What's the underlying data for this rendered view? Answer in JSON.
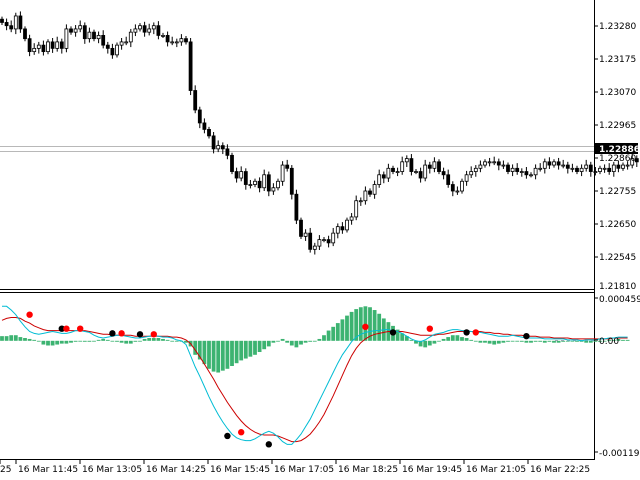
{
  "colors": {
    "background": "#ffffff",
    "frame": "#000000",
    "grid_line": "#b8b8b8",
    "bull_body": "#ffffff",
    "bear_body": "#000000",
    "candle_wick": "#000000",
    "price_badge_bg": "#000000",
    "price_badge_text": "#ffffff",
    "histogram": "#3cb371",
    "fast_line": "#00bcd4",
    "slow_line": "#cc0000",
    "dot_black": "#000000",
    "dot_red": "#ff0000",
    "zero_line": "#9aa6b2"
  },
  "main_panel": {
    "price_axis_labels": [
      "1.23280",
      "1.23175",
      "1.23070",
      "1.22965",
      "1.22886",
      "1.22860",
      "1.22755",
      "1.22650",
      "1.22545",
      "1.21810"
    ],
    "current_price": "1.22886"
  },
  "indicator_panel": {
    "axis_labels": [
      "0.000459",
      "0.00",
      "-0.001192"
    ]
  },
  "time_axis": {
    "labels": [
      "25",
      "16 Mar 11:45",
      "16 Mar 13:05",
      "16 Mar 14:25",
      "16 Mar 15:45",
      "16 Mar 17:05",
      "16 Mar 18:25",
      "16 Mar 19:45",
      "16 Mar 21:05",
      "16 Mar 22:25"
    ]
  },
  "chart_data": [
    {
      "type": "candlestick",
      "x_unit": "bar index (5-minute bars, 16 Mar)",
      "y_axis_ticks": [
        1.2328,
        1.23175,
        1.2307,
        1.22965,
        1.2286,
        1.22755,
        1.2265,
        1.22545
      ],
      "ylim": [
        1.225,
        1.2337
      ],
      "current_price": 1.22886,
      "close": [
        1.2331,
        1.233,
        1.2329,
        1.2333,
        1.2329,
        1.2326,
        1.2322,
        1.2323,
        1.2324,
        1.2322,
        1.2325,
        1.2323,
        1.2325,
        1.2323,
        1.2329,
        1.2328,
        1.2329,
        1.233,
        1.2326,
        1.2328,
        1.2326,
        1.2327,
        1.2324,
        1.2323,
        1.2321,
        1.2324,
        1.2325,
        1.2325,
        1.2328,
        1.2329,
        1.233,
        1.2328,
        1.2329,
        1.233,
        1.2327,
        1.2327,
        1.2325,
        1.2325,
        1.2325,
        1.2326,
        1.2325,
        1.231,
        1.2304,
        1.23,
        1.2298,
        1.2296,
        1.2292,
        1.2293,
        1.2292,
        1.229,
        1.2285,
        1.2283,
        1.2285,
        1.2281,
        1.2281,
        1.2282,
        1.228,
        1.2284,
        1.2279,
        1.228,
        1.2282,
        1.2287,
        1.2286,
        1.2278,
        1.227,
        1.2265,
        1.2266,
        1.2261,
        1.2262,
        1.2264,
        1.2264,
        1.2263,
        1.2266,
        1.2268,
        1.2267,
        1.227,
        1.2271,
        1.2276,
        1.2276,
        1.2279,
        1.2278,
        1.2281,
        1.2284,
        1.2283,
        1.2286,
        1.2285,
        1.2285,
        1.2288,
        1.2289,
        1.2285,
        1.2285,
        1.2283,
        1.2287,
        1.2286,
        1.2288,
        1.2285,
        1.2284,
        1.2281,
        1.2279,
        1.2279,
        1.2282,
        1.2284,
        1.2285,
        1.2286,
        1.2287,
        1.2288,
        1.2288,
        1.2288,
        1.2287,
        1.2287,
        1.2285,
        1.2286,
        1.2285,
        1.2285,
        1.2284,
        1.2284,
        1.2286,
        1.2286,
        1.2288,
        1.2287,
        1.2288,
        1.2287,
        1.2287,
        1.2286,
        1.2286,
        1.2285,
        1.2286,
        1.2287,
        1.2285,
        1.2285,
        1.2286,
        1.2286,
        1.2285,
        1.2287,
        1.2286,
        1.2287,
        1.2287,
        1.2289,
        1.2288
      ]
    },
    {
      "type": "oscillator",
      "y_axis_ticks": [
        0.000459,
        0.0,
        -0.001192
      ],
      "ylim": [
        -0.001192,
        0.000459
      ],
      "histogram": [
        5e-05,
        5e-05,
        6e-05,
        6e-05,
        4e-05,
        3e-05,
        2e-05,
        1e-05,
        0.0,
        -4e-05,
        -5e-05,
        -5e-05,
        -4e-05,
        -3e-05,
        -3e-05,
        -2e-05,
        -1e-05,
        0.0,
        -1e-05,
        -1e-05,
        0.0,
        1e-05,
        2e-05,
        1e-05,
        0.0,
        -1e-05,
        -2e-05,
        -3e-05,
        -3e-05,
        -1e-05,
        0.0,
        2e-05,
        3e-05,
        3e-05,
        3e-05,
        2e-05,
        1e-05,
        0.0,
        0.0,
        0.0,
        -2e-05,
        -6e-05,
        -0.00015,
        -0.0002,
        -0.00025,
        -0.0003,
        -0.00033,
        -0.00034,
        -0.00032,
        -0.0003,
        -0.00027,
        -0.00024,
        -0.00021,
        -0.00019,
        -0.00017,
        -0.00015,
        -0.00012,
        -9e-05,
        -6e-05,
        -2e-05,
        0.0,
        2e-05,
        -2e-05,
        -5e-05,
        -7e-05,
        -4e-05,
        -2e-05,
        -1e-05,
        0.0,
        2e-05,
        6e-05,
        0.00011,
        0.00015,
        0.00019,
        0.00023,
        0.00027,
        0.00031,
        0.00034,
        0.00036,
        0.00037,
        0.00036,
        0.00033,
        0.00029,
        0.00024,
        0.0002,
        0.00016,
        0.00012,
        8e-05,
        5e-05,
        1e-05,
        -3e-05,
        -6e-05,
        -7e-05,
        -5e-05,
        -3e-05,
        0.0,
        2e-05,
        4e-05,
        6e-05,
        6e-05,
        4e-05,
        3e-05,
        1e-05,
        0.0,
        -2e-05,
        -2e-05,
        -3e-05,
        -4e-05,
        -3e-05,
        -2e-05,
        -1e-05,
        0.0,
        0.0,
        -1e-05,
        -2e-05,
        -2e-05,
        -1e-05,
        -1e-05,
        -2e-05,
        -1e-05,
        -2e-05,
        -2e-05,
        -1e-05,
        0.0,
        0.0,
        -1e-05,
        -1e-05,
        -2e-05,
        -2e-05,
        -1e-05,
        -1e-05,
        0.0,
        1e-05,
        1e-05,
        2e-05,
        1e-05,
        1e-05
      ],
      "fast_line": [
        0.00037,
        0.00037,
        0.00033,
        0.00028,
        0.00021,
        0.00015,
        0.0001,
        8e-05,
        7e-05,
        8e-05,
        9e-05,
        0.0001,
        9e-05,
        8e-05,
        8e-05,
        9e-05,
        0.00011,
        0.00011,
        0.0001,
        9e-05,
        6e-05,
        4e-05,
        3e-05,
        4e-05,
        5e-05,
        6e-05,
        6e-05,
        5e-05,
        4e-05,
        3e-05,
        3e-05,
        4e-05,
        5e-05,
        6e-05,
        5e-05,
        4e-05,
        4e-05,
        3e-05,
        1e-05,
        0.0,
        -4e-05,
        -0.00016,
        -0.00028,
        -0.00038,
        -0.00049,
        -0.0006,
        -0.0007,
        -0.00079,
        -0.00087,
        -0.00094,
        -0.001,
        -0.00104,
        -0.00106,
        -0.00107,
        -0.00107,
        -0.00105,
        -0.00102,
        -0.00099,
        -0.00097,
        -0.00099,
        -0.00103,
        -0.00108,
        -0.00111,
        -0.00111,
        -0.00106,
        -0.001,
        -0.00092,
        -0.00084,
        -0.00074,
        -0.00064,
        -0.00054,
        -0.00044,
        -0.00034,
        -0.00024,
        -0.00015,
        -8e-05,
        -1e-05,
        4e-05,
        7e-05,
        9e-05,
        0.0001,
        0.00011,
        0.00011,
        0.00012,
        0.00012,
        0.00011,
        0.0001,
        8e-05,
        5e-05,
        2e-05,
        0.0,
        -1e-05,
        1e-05,
        4e-05,
        7e-05,
        8e-05,
        9e-05,
        0.00011,
        0.00012,
        0.00012,
        0.00011,
        0.00011,
        0.0001,
        9e-05,
        9e-05,
        8e-05,
        7e-05,
        6e-05,
        5e-05,
        5e-05,
        5e-05,
        6e-05,
        5e-05,
        4e-05,
        3e-05,
        3e-05,
        3e-05,
        3e-05,
        2e-05,
        2e-05,
        2e-05,
        2e-05,
        2e-05,
        1e-05,
        1e-05,
        1e-05,
        0.0,
        1e-05,
        1e-05,
        1e-05,
        2e-05,
        2e-05,
        3e-05,
        3e-05,
        4e-05,
        4e-05,
        4e-05
      ],
      "slow_line": [
        0.00022,
        0.00024,
        0.00025,
        0.00025,
        0.00024,
        0.00021,
        0.00019,
        0.00016,
        0.00014,
        0.00012,
        0.00011,
        0.00011,
        0.00011,
        0.00011,
        0.00011,
        0.00011,
        0.00011,
        0.00011,
        0.00011,
        0.0001,
        9e-05,
        8e-05,
        7e-05,
        7e-05,
        6e-05,
        6e-05,
        6e-05,
        6e-05,
        6e-05,
        5e-05,
        5e-05,
        5e-05,
        5e-05,
        5e-05,
        5e-05,
        5e-05,
        5e-05,
        4e-05,
        4e-05,
        3e-05,
        1e-05,
        -3e-05,
        -0.0001,
        -0.00017,
        -0.00025,
        -0.00033,
        -0.00041,
        -0.0005,
        -0.00058,
        -0.00066,
        -0.00073,
        -0.0008,
        -0.00086,
        -0.00091,
        -0.00095,
        -0.00098,
        -0.001,
        -0.00101,
        -0.00101,
        -0.00101,
        -0.00102,
        -0.00104,
        -0.00106,
        -0.00108,
        -0.00108,
        -0.00107,
        -0.00104,
        -0.001,
        -0.00094,
        -0.00087,
        -0.00079,
        -0.00069,
        -0.00059,
        -0.00048,
        -0.00037,
        -0.00026,
        -0.00016,
        -8e-05,
        -2e-05,
        2e-05,
        5e-05,
        7e-05,
        8e-05,
        9e-05,
        0.0001,
        0.0001,
        0.0001,
        0.0001,
        9e-05,
        8e-05,
        7e-05,
        6e-05,
        6e-05,
        6e-05,
        6e-05,
        7e-05,
        7e-05,
        8e-05,
        9e-05,
        0.0001,
        0.0001,
        0.0001,
        0.0001,
        0.0001,
        0.0001,
        9e-05,
        9e-05,
        8e-05,
        8e-05,
        7e-05,
        7e-05,
        6e-05,
        6e-05,
        6e-05,
        5e-05,
        5e-05,
        5e-05,
        4e-05,
        4e-05,
        4e-05,
        3e-05,
        3e-05,
        3e-05,
        3e-05,
        2e-05,
        2e-05,
        2e-05,
        2e-05,
        2e-05,
        2e-05,
        2e-05,
        2e-05,
        2e-05,
        3e-05,
        3e-05,
        3e-05,
        3e-05
      ],
      "signal_dots": [
        {
          "bar": 6,
          "value": 0.00028,
          "color": "red"
        },
        {
          "bar": 13,
          "value": 0.00013,
          "color": "black"
        },
        {
          "bar": 14,
          "value": 0.00013,
          "color": "red"
        },
        {
          "bar": 17,
          "value": 0.00013,
          "color": "red"
        },
        {
          "bar": 24,
          "value": 8e-05,
          "color": "black"
        },
        {
          "bar": 26,
          "value": 8e-05,
          "color": "red"
        },
        {
          "bar": 30,
          "value": 7e-05,
          "color": "black"
        },
        {
          "bar": 33,
          "value": 7e-05,
          "color": "red"
        },
        {
          "bar": 49,
          "value": -0.00102,
          "color": "black"
        },
        {
          "bar": 52,
          "value": -0.00098,
          "color": "red"
        },
        {
          "bar": 58,
          "value": -0.00111,
          "color": "black"
        },
        {
          "bar": 79,
          "value": 0.00015,
          "color": "red"
        },
        {
          "bar": 85,
          "value": 9e-05,
          "color": "black"
        },
        {
          "bar": 93,
          "value": 0.00013,
          "color": "red"
        },
        {
          "bar": 101,
          "value": 9e-05,
          "color": "black"
        },
        {
          "bar": 103,
          "value": 9e-05,
          "color": "red"
        },
        {
          "bar": 114,
          "value": 5e-05,
          "color": "black"
        }
      ]
    }
  ]
}
